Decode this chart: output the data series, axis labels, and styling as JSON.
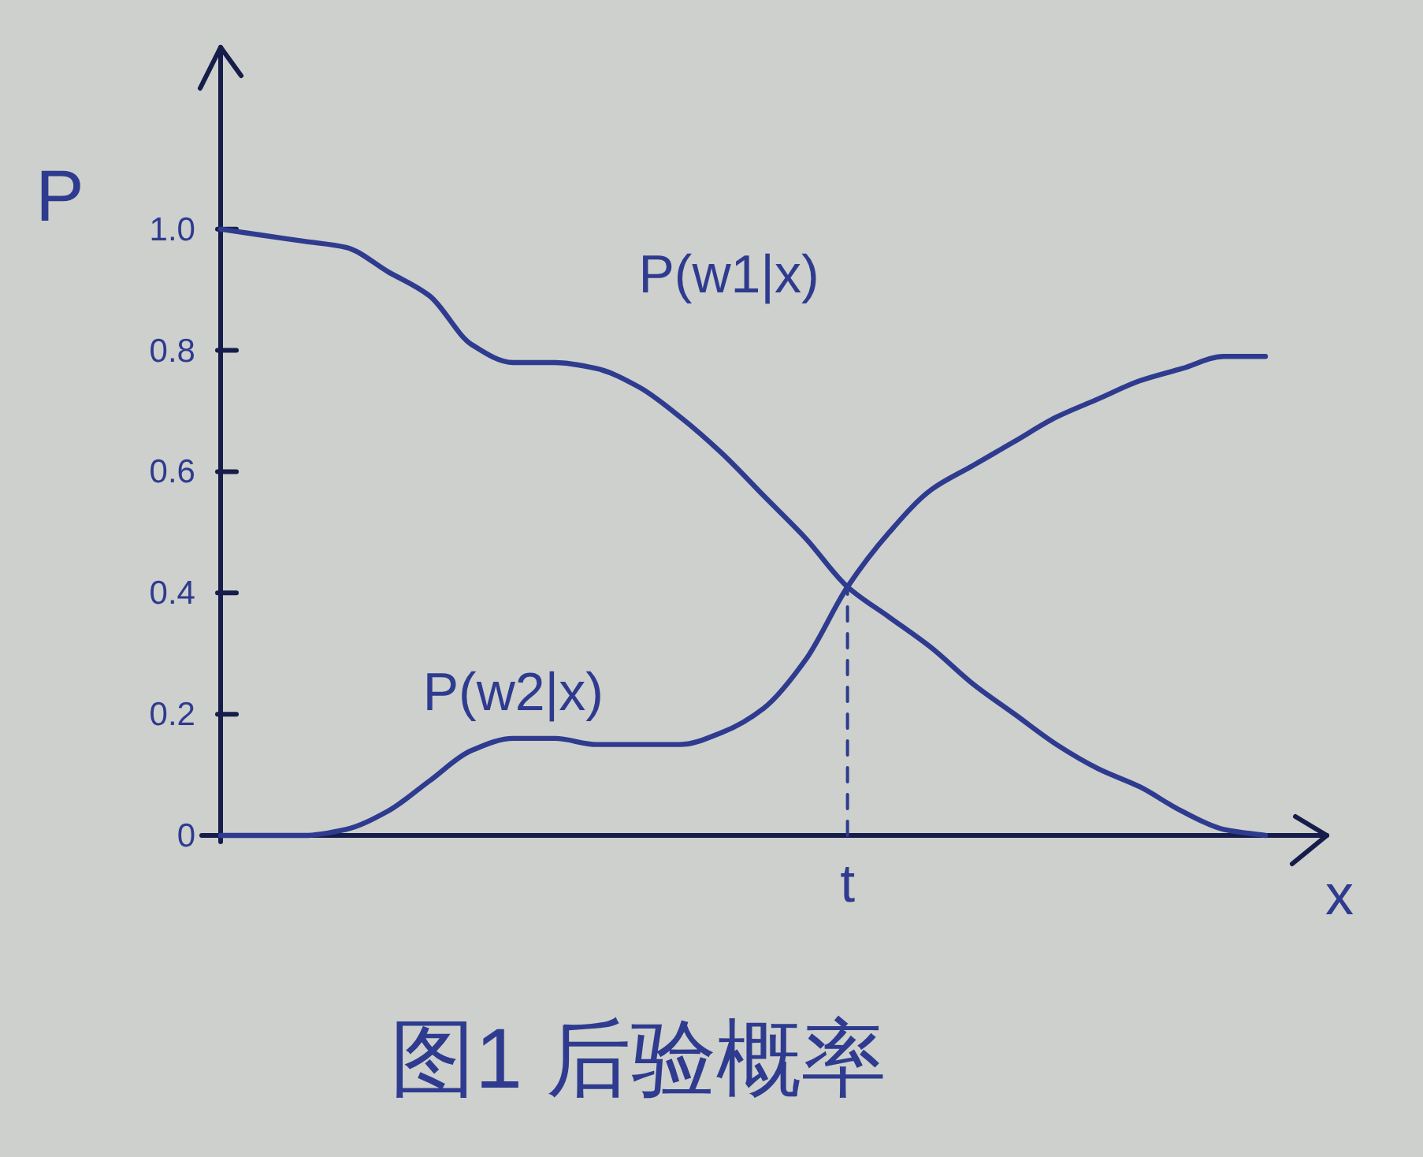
{
  "chart_data": {
    "type": "line",
    "title": "图1 后验概率",
    "xlabel": "x",
    "ylabel": "P",
    "categories": [
      null,
      null,
      null,
      null,
      null,
      null,
      null,
      null,
      null,
      null,
      null,
      null,
      null,
      null,
      null,
      "t",
      null,
      null,
      null,
      null,
      null,
      null,
      null,
      null,
      null,
      null
    ],
    "series": [
      {
        "name": "P(w1|x)",
        "color": "#2e3b8f",
        "values": [
          1.0,
          0.99,
          0.98,
          0.97,
          0.93,
          0.89,
          0.81,
          0.78,
          0.78,
          0.77,
          0.74,
          0.69,
          0.63,
          0.56,
          0.49,
          0.41,
          0.36,
          0.31,
          0.25,
          0.2,
          0.15,
          0.11,
          0.08,
          0.04,
          0.01,
          0
        ]
      },
      {
        "name": "P(w2|x)",
        "color": "#2e3b8f",
        "values": [
          0,
          0,
          0,
          0.01,
          0.04,
          0.09,
          0.14,
          0.16,
          0.16,
          0.15,
          0.15,
          0.15,
          0.17,
          0.21,
          0.29,
          0.41,
          0.5,
          0.57,
          0.61,
          0.65,
          0.69,
          0.72,
          0.75,
          0.77,
          0.79,
          0.79
        ]
      },
      {
        "type": "line",
        "x": [
          "t",
          "t"
        ],
        "values": [
          0,
          0.41
        ],
        "line_style": "dashed",
        "color": "#2e3b8f"
      }
    ],
    "ylim": [
      0,
      1.3
    ],
    "yticks": [
      0,
      0.2,
      0.4,
      0.6,
      0.8,
      {
        "value": 1,
        "label": "1.0"
      }
    ],
    "legend": false,
    "grid": false
  }
}
